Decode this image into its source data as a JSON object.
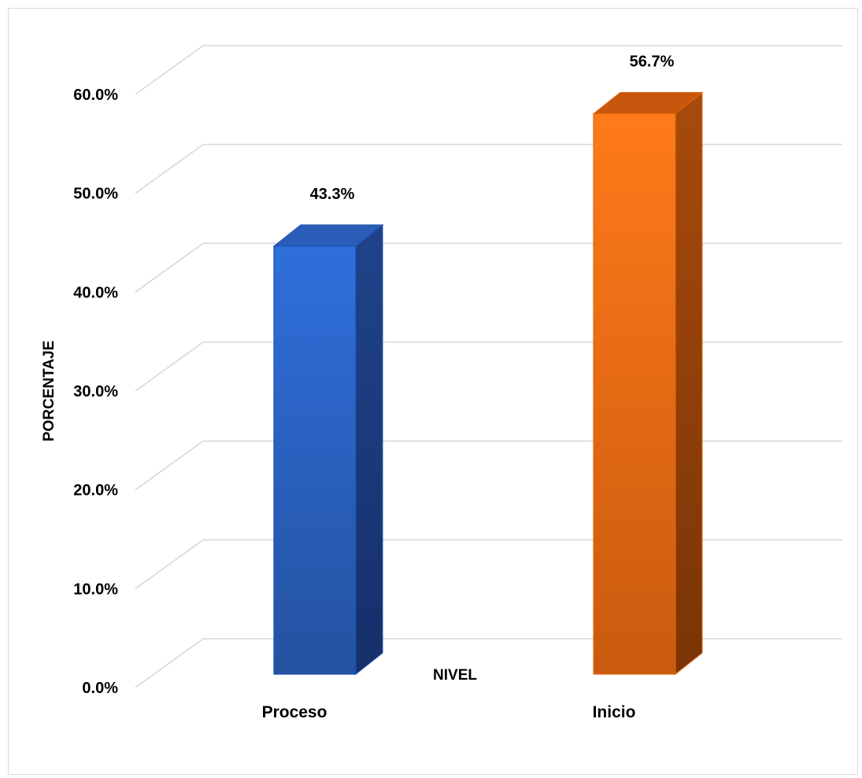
{
  "chart_data": {
    "type": "bar",
    "style": "3d-column",
    "categories": [
      "Proceso",
      "Inicio"
    ],
    "values": [
      43.3,
      56.7
    ],
    "data_labels": [
      "43.3%",
      "56.7%"
    ],
    "title": "",
    "xlabel": "NIVEL",
    "ylabel": "PORCENTAJE",
    "ylim": [
      0,
      60
    ],
    "yticks": [
      0,
      10,
      20,
      30,
      40,
      50,
      60
    ],
    "ytick_labels": [
      "0.0%",
      "10.0%",
      "20.0%",
      "30.0%",
      "40.0%",
      "50.0%",
      "60.0%"
    ],
    "grid": true,
    "legend": false,
    "colors": {
      "Proceso": {
        "front_top": "#2f6fdc",
        "front_bottom": "#2452a0",
        "side_top": "#1f438a",
        "side_bottom": "#15306a",
        "top": "#2a5db8",
        "edge": "#1d4fb0"
      },
      "Inicio": {
        "front_top": "#ff7a1a",
        "front_bottom": "#c95a0e",
        "side_top": "#a84a0c",
        "side_bottom": "#7a3405",
        "top": "#c8560c",
        "edge": "#e06a10"
      }
    }
  }
}
